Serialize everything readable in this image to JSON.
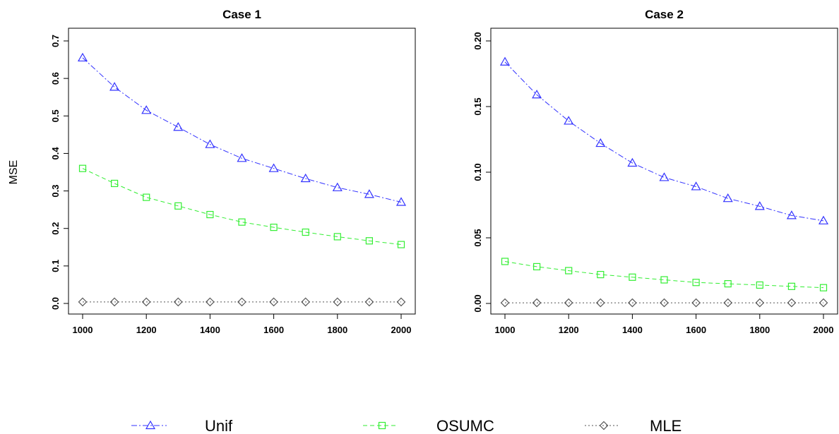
{
  "chart_data": [
    {
      "type": "line",
      "title": "Case 1",
      "xlabel": "",
      "ylabel": "MSE",
      "x": [
        1000,
        1100,
        1200,
        1300,
        1400,
        1500,
        1600,
        1700,
        1800,
        1900,
        2000
      ],
      "xlim": [
        1000,
        2000
      ],
      "ylim": [
        0,
        0.7
      ],
      "xticks": [
        "1000",
        "1200",
        "1400",
        "1600",
        "1800",
        "2000"
      ],
      "yticks": [
        "0.0",
        "0.1",
        "0.2",
        "0.3",
        "0.4",
        "0.5",
        "0.6",
        "0.7"
      ],
      "series": [
        {
          "name": "Unif",
          "color": "#3333ff",
          "values": [
            0.655,
            0.577,
            0.515,
            0.47,
            0.424,
            0.387,
            0.36,
            0.333,
            0.309,
            0.291,
            0.27
          ]
        },
        {
          "name": "OSUMC",
          "color": "#33ee33",
          "values": [
            0.36,
            0.32,
            0.283,
            0.26,
            0.237,
            0.217,
            0.203,
            0.19,
            0.178,
            0.167,
            0.157
          ]
        },
        {
          "name": "MLE",
          "color": "#555555",
          "values": [
            0.004,
            0.004,
            0.004,
            0.004,
            0.004,
            0.004,
            0.004,
            0.004,
            0.004,
            0.004,
            0.004
          ]
        }
      ]
    },
    {
      "type": "line",
      "title": "Case 2",
      "xlabel": "",
      "ylabel": "",
      "x": [
        1000,
        1100,
        1200,
        1300,
        1400,
        1500,
        1600,
        1700,
        1800,
        1900,
        2000
      ],
      "xlim": [
        1000,
        2000
      ],
      "ylim": [
        0,
        0.2
      ],
      "xticks": [
        "1000",
        "1200",
        "1400",
        "1600",
        "1800",
        "2000"
      ],
      "yticks": [
        "0.00",
        "0.05",
        "0.10",
        "0.15",
        "0.20"
      ],
      "series": [
        {
          "name": "Unif",
          "color": "#3333ff",
          "values": [
            0.184,
            0.159,
            0.139,
            0.122,
            0.107,
            0.096,
            0.089,
            0.08,
            0.074,
            0.067,
            0.063
          ]
        },
        {
          "name": "OSUMC",
          "color": "#33ee33",
          "values": [
            0.032,
            0.028,
            0.025,
            0.022,
            0.02,
            0.018,
            0.016,
            0.015,
            0.014,
            0.013,
            0.012
          ]
        },
        {
          "name": "MLE",
          "color": "#555555",
          "values": [
            0.0005,
            0.0005,
            0.0005,
            0.0005,
            0.0005,
            0.0005,
            0.0005,
            0.0005,
            0.0005,
            0.0005,
            0.0005
          ]
        }
      ]
    }
  ],
  "legend": {
    "position": "bottom",
    "entries": [
      {
        "label": "Unif",
        "color": "#3333ff",
        "marker": "triangle-icon",
        "dash": "dotdash"
      },
      {
        "label": "OSUMC",
        "color": "#33ee33",
        "marker": "square-icon",
        "dash": "dashed"
      },
      {
        "label": "MLE",
        "color": "#555555",
        "marker": "diamond-icon",
        "dash": "dotted"
      }
    ]
  }
}
